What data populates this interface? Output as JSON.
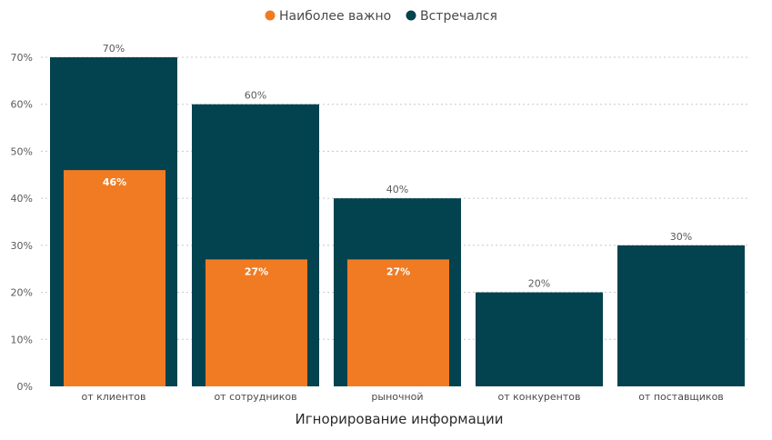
{
  "chart_data": {
    "type": "bar",
    "xlabel": "Игнорирование информации",
    "ylabel": "",
    "ylim": [
      0,
      70
    ],
    "yticks": [
      "0%",
      "10%",
      "20%",
      "30%",
      "40%",
      "50%",
      "60%",
      "70%"
    ],
    "grid": true,
    "legend_position": "top-center",
    "categories": [
      "от клиентов",
      "от сотрудников",
      "рыночной",
      "от конкурентов",
      "от поставщиков"
    ],
    "series": [
      {
        "name": "Наиболее важно",
        "color": "#f07b23",
        "values": [
          46,
          27,
          27,
          null,
          null
        ],
        "labels": [
          "46%",
          "27%",
          "27%",
          "",
          ""
        ]
      },
      {
        "name": "Встречался",
        "color": "#03424f",
        "values": [
          70,
          60,
          40,
          20,
          30
        ],
        "labels": [
          "70%",
          "60%",
          "40%",
          "20%",
          "30%"
        ]
      }
    ]
  }
}
